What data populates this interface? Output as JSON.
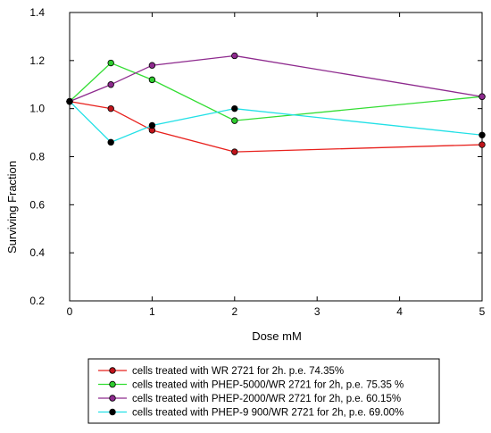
{
  "chart_data": {
    "type": "line",
    "title": "",
    "xlabel": "Dose mM",
    "ylabel": "Surviving Fraction",
    "x_ticks": [
      "0",
      "1",
      "2",
      "3",
      "4",
      "5"
    ],
    "y_ticks": [
      "0.2",
      "0.4",
      "0.6",
      "0.8",
      "1.0",
      "1.2",
      "1.4"
    ],
    "xlim": [
      0,
      5
    ],
    "ylim": [
      0.2,
      1.4
    ],
    "grid": false,
    "legend_position": "bottom",
    "x": [
      0,
      0.5,
      1,
      2,
      5
    ],
    "series": [
      {
        "name": "cells treated with WR 2721 for 2h. p.e. 74.35%",
        "line_color": "#e8211d",
        "marker_color": "#c0141b",
        "values": [
          1.03,
          1.0,
          0.91,
          0.82,
          0.85
        ]
      },
      {
        "name": "cells treated with PHEP-5000/WR 2721 for 2h, p.e. 75.35 %",
        "line_color": "#33dd33",
        "marker_color": "#2ecc2e",
        "values": [
          1.03,
          1.19,
          1.12,
          0.95,
          1.05
        ]
      },
      {
        "name": "cells treated with PHEP-2000/WR 2721 for 2h, p.e. 60.15%",
        "line_color": "#8e2a8e",
        "marker_color": "#8e2a8e",
        "values": [
          1.03,
          1.1,
          1.18,
          1.22,
          1.05
        ]
      },
      {
        "name": "cells treated with PHEP-9 900/WR 2721 for 2h, p.e. 69.00%",
        "line_color": "#22e0e6",
        "marker_color": "#000000",
        "values": [
          1.03,
          0.86,
          0.93,
          1.0,
          0.89
        ]
      }
    ]
  }
}
